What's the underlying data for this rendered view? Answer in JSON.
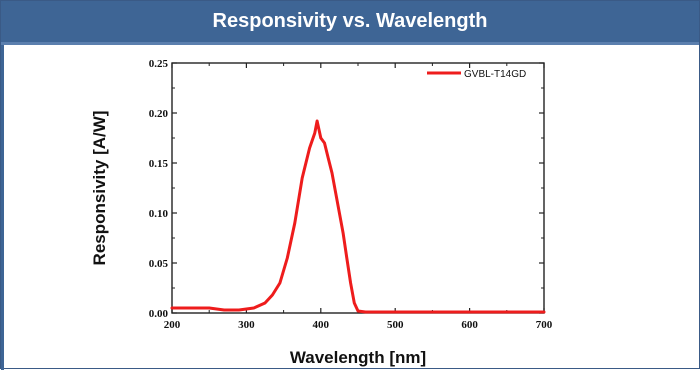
{
  "header": {
    "title": "Responsivity vs. Wavelength"
  },
  "colors": {
    "header_bg": "#3e6595",
    "series": "#ee1c1c"
  },
  "chart_data": {
    "type": "line",
    "title": "Responsivity vs. Wavelength",
    "xlabel": "Wavelength [nm]",
    "ylabel": "Responsivity [A/W]",
    "xlim": [
      200,
      700
    ],
    "ylim": [
      0.0,
      0.25
    ],
    "xticks": [
      200,
      300,
      400,
      500,
      600,
      700
    ],
    "yticks": [
      0.0,
      0.05,
      0.1,
      0.15,
      0.2,
      0.25
    ],
    "xtick_labels": [
      "200",
      "300",
      "400",
      "500",
      "600",
      "700"
    ],
    "ytick_labels": [
      "0.00",
      "0.05",
      "0.10",
      "0.15",
      "0.20",
      "0.25"
    ],
    "grid": false,
    "legend": {
      "position": "top-right"
    },
    "series": [
      {
        "name": "GVBL-T14GD",
        "color": "#ee1c1c",
        "x": [
          200,
          225,
          250,
          270,
          290,
          310,
          325,
          335,
          345,
          355,
          365,
          375,
          385,
          392,
          395,
          400,
          405,
          410,
          415,
          420,
          425,
          430,
          435,
          440,
          445,
          450,
          460,
          500,
          600,
          700
        ],
        "y": [
          0.005,
          0.005,
          0.005,
          0.003,
          0.003,
          0.005,
          0.01,
          0.018,
          0.03,
          0.055,
          0.09,
          0.135,
          0.165,
          0.18,
          0.192,
          0.175,
          0.17,
          0.155,
          0.14,
          0.12,
          0.1,
          0.08,
          0.055,
          0.03,
          0.01,
          0.002,
          0.001,
          0.001,
          0.001,
          0.001
        ]
      }
    ]
  }
}
